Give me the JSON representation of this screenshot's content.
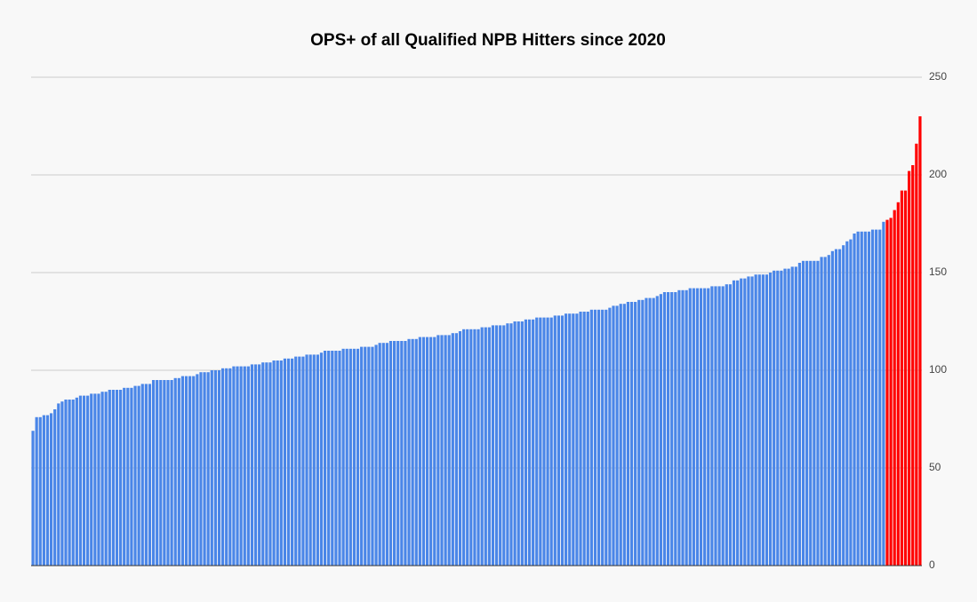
{
  "chart_data": {
    "type": "bar",
    "title": "OPS+ of all Qualified NPB Hitters since 2020",
    "ylim": [
      0,
      250
    ],
    "yticks": [
      0,
      50,
      100,
      150,
      200,
      250
    ],
    "grid": true,
    "y_axis_side": "right",
    "series": [
      {
        "color": "#4a86e8",
        "values": [
          69,
          76,
          76,
          77,
          77,
          78,
          80,
          83,
          84,
          85,
          85,
          85,
          86,
          87,
          87,
          87,
          88,
          88,
          88,
          89,
          89,
          90,
          90,
          90,
          90,
          91,
          91,
          91,
          92,
          92,
          93,
          93,
          93,
          95,
          95,
          95,
          95,
          95,
          95,
          96,
          96,
          97,
          97,
          97,
          97,
          98,
          99,
          99,
          99,
          100,
          100,
          100,
          101,
          101,
          101,
          102,
          102,
          102,
          102,
          102,
          103,
          103,
          103,
          104,
          104,
          104,
          105,
          105,
          105,
          106,
          106,
          106,
          107,
          107,
          107,
          108,
          108,
          108,
          108,
          109,
          110,
          110,
          110,
          110,
          110,
          111,
          111,
          111,
          111,
          111,
          112,
          112,
          112,
          112,
          113,
          114,
          114,
          114,
          115,
          115,
          115,
          115,
          115,
          116,
          116,
          116,
          117,
          117,
          117,
          117,
          117,
          118,
          118,
          118,
          118,
          119,
          119,
          120,
          121,
          121,
          121,
          121,
          121,
          122,
          122,
          122,
          123,
          123,
          123,
          123,
          124,
          124,
          125,
          125,
          125,
          126,
          126,
          126,
          127,
          127,
          127,
          127,
          127,
          128,
          128,
          128,
          129,
          129,
          129,
          129,
          130,
          130,
          130,
          131,
          131,
          131,
          131,
          131,
          132,
          133,
          133,
          134,
          134,
          135,
          135,
          135,
          136,
          136,
          137,
          137,
          137,
          138,
          139,
          140,
          140,
          140,
          140,
          141,
          141,
          141,
          142,
          142,
          142,
          142,
          142,
          142,
          143,
          143,
          143,
          143,
          144,
          144,
          146,
          146,
          147,
          147,
          148,
          148,
          149,
          149,
          149,
          149,
          150,
          151,
          151,
          151,
          152,
          152,
          153,
          153,
          155,
          156,
          156,
          156,
          156,
          156,
          158,
          158,
          159,
          161,
          162,
          162,
          164,
          166,
          167,
          170,
          171,
          171,
          171,
          171,
          172,
          172,
          172,
          176,
          null,
          null,
          null,
          null,
          null,
          null,
          null,
          null,
          null,
          null
        ]
      },
      {
        "color": "#ff0000",
        "values": [
          null,
          null,
          null,
          null,
          null,
          null,
          null,
          null,
          null,
          null,
          null,
          null,
          null,
          null,
          null,
          null,
          null,
          null,
          null,
          null,
          null,
          null,
          null,
          null,
          null,
          null,
          null,
          null,
          null,
          null,
          null,
          null,
          null,
          null,
          null,
          null,
          null,
          null,
          null,
          null,
          null,
          null,
          null,
          null,
          null,
          null,
          null,
          null,
          null,
          null,
          null,
          null,
          null,
          null,
          null,
          null,
          null,
          null,
          null,
          null,
          null,
          null,
          null,
          null,
          null,
          null,
          null,
          null,
          null,
          null,
          null,
          null,
          null,
          null,
          null,
          null,
          null,
          null,
          null,
          null,
          null,
          null,
          null,
          null,
          null,
          null,
          null,
          null,
          null,
          null,
          null,
          null,
          null,
          null,
          null,
          null,
          null,
          null,
          null,
          null,
          null,
          null,
          null,
          null,
          null,
          null,
          null,
          null,
          null,
          null,
          null,
          null,
          null,
          null,
          null,
          null,
          null,
          null,
          null,
          null,
          null,
          null,
          null,
          null,
          null,
          null,
          null,
          null,
          null,
          null,
          null,
          null,
          null,
          null,
          null,
          null,
          null,
          null,
          null,
          null,
          null,
          null,
          null,
          null,
          null,
          null,
          null,
          null,
          null,
          null,
          null,
          null,
          null,
          null,
          null,
          null,
          null,
          null,
          null,
          null,
          null,
          null,
          null,
          null,
          null,
          null,
          null,
          null,
          null,
          null,
          null,
          null,
          null,
          null,
          null,
          null,
          null,
          null,
          null,
          null,
          null,
          null,
          null,
          null,
          null,
          null,
          null,
          null,
          null,
          null,
          null,
          null,
          null,
          null,
          null,
          null,
          null,
          null,
          null,
          null,
          null,
          null,
          null,
          null,
          null,
          null,
          null,
          null,
          null,
          null,
          null,
          null,
          null,
          null,
          null,
          null,
          null,
          null,
          null,
          null,
          null,
          null,
          null,
          null,
          null,
          null,
          null,
          null,
          null,
          null,
          null,
          null,
          null,
          null,
          177,
          178,
          182,
          186,
          192,
          192,
          202,
          205,
          216,
          230
        ]
      }
    ]
  }
}
